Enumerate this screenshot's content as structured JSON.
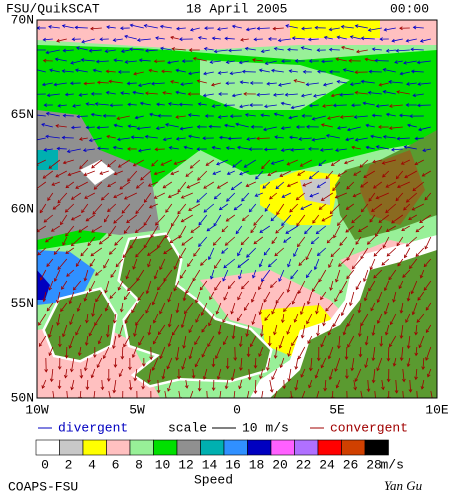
{
  "header": {
    "title": "FSU/QuikSCAT",
    "date": "18 April 2005",
    "time": "00:00"
  },
  "lat_labels": [
    "70N",
    "65N",
    "60N",
    "55N",
    "50N"
  ],
  "lon_labels": [
    "10W",
    "5W",
    "0",
    "5E",
    "10E"
  ],
  "legend": {
    "divergent": "divergent",
    "scale": "scale",
    "scale_value": "10 m/s",
    "convergent": "convergent"
  },
  "colorbar": {
    "values": [
      0,
      2,
      4,
      6,
      8,
      10,
      12,
      14,
      16,
      18,
      20,
      22,
      24,
      26,
      28
    ],
    "colors": [
      "#ffffff",
      "#c8c8c8",
      "#ffff00",
      "#ffc0c0",
      "#98f098",
      "#00e000",
      "#909090",
      "#00b0b0",
      "#3090ff",
      "#0000c0",
      "#ff60ff",
      "#b070ff",
      "#ff0000",
      "#d04000",
      "#000000"
    ],
    "unit": "m/s",
    "label": "Speed"
  },
  "footer": {
    "left": "COAPS-FSU",
    "right": "Yan Gu"
  }
}
